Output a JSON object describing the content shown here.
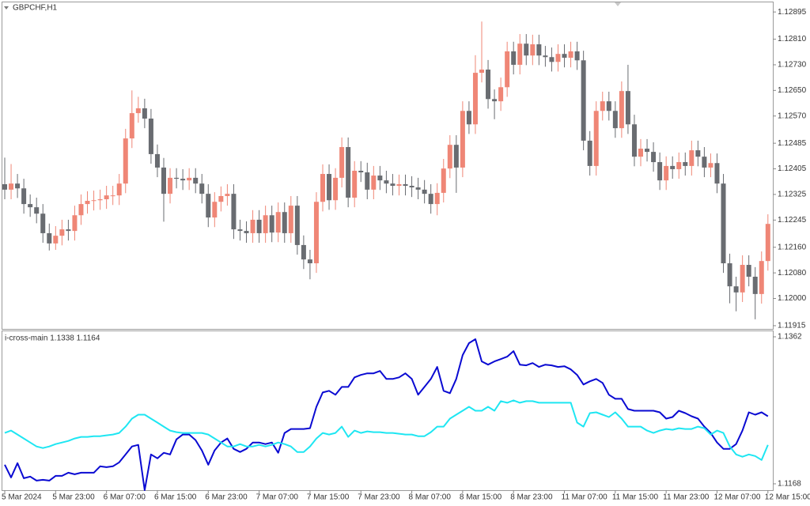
{
  "chart_data": [
    {
      "type": "candlestick",
      "title": "GBPCHF,H1",
      "up_color": "#ef8676",
      "down_color": "#696c71",
      "ylim": [
        1.11905,
        1.12925
      ],
      "yticks": [
        1.12895,
        {
          "value": 1.1281,
          "label": "1.12810"
        },
        {
          "value": 1.1273,
          "label": "1.12730"
        },
        {
          "value": 1.1265,
          "label": "1.12650"
        },
        {
          "value": 1.1257,
          "label": "1.12570"
        },
        1.12485,
        1.12405,
        1.12325,
        1.12245,
        {
          "value": 1.1216,
          "label": "1.12160"
        },
        {
          "value": 1.1208,
          "label": "1.12080"
        },
        {
          "value": 1.12,
          "label": "1.12000"
        },
        1.11915
      ],
      "categories": [
        "5 Mar 2024",
        null,
        null,
        null,
        null,
        null,
        null,
        null,
        "5 Mar 23:00",
        null,
        null,
        null,
        null,
        null,
        null,
        null,
        "6 Mar 07:00",
        null,
        null,
        null,
        null,
        null,
        null,
        null,
        "6 Mar 15:00",
        null,
        null,
        null,
        null,
        null,
        null,
        null,
        "6 Mar 23:00",
        null,
        null,
        null,
        null,
        null,
        null,
        null,
        "7 Mar 07:00",
        null,
        null,
        null,
        null,
        null,
        null,
        null,
        "7 Mar 15:00",
        null,
        null,
        null,
        null,
        null,
        null,
        null,
        "7 Mar 23:00",
        null,
        null,
        null,
        null,
        null,
        null,
        null,
        "8 Mar 07:00",
        null,
        null,
        null,
        null,
        null,
        null,
        null,
        "8 Mar 15:00",
        null,
        null,
        null,
        null,
        null,
        null,
        null,
        "8 Mar 23:00",
        null,
        null,
        null,
        null,
        null,
        null,
        null,
        "11 Mar 07:00",
        null,
        null,
        null,
        null,
        null,
        null,
        null,
        "11 Mar 15:00",
        null,
        null,
        null,
        null,
        null,
        null,
        null,
        "11 Mar 23:00",
        null,
        null,
        null,
        null,
        null,
        null,
        null,
        "12 Mar 07:00",
        null,
        null,
        null,
        null,
        null,
        null,
        null,
        "12 Mar 15:00"
      ],
      "open": [
        1.12357,
        1.1234,
        1.12359,
        1.12344,
        1.12295,
        1.12285,
        1.12265,
        1.12204,
        1.12172,
        1.12196,
        1.12216,
        1.12211,
        1.1226,
        1.12295,
        1.12305,
        1.12307,
        1.1231,
        1.12322,
        1.12322,
        1.12359,
        1.125,
        1.12579,
        1.12594,
        1.12562,
        1.12451,
        1.12409,
        1.12327,
        1.12377,
        1.12374,
        1.12369,
        1.12377,
        1.12359,
        1.12327,
        1.12253,
        1.12302,
        1.1232,
        1.12327,
        1.12216,
        1.12211,
        1.12204,
        1.12246,
        1.12204,
        1.1226,
        1.12206,
        1.1227,
        1.12204,
        1.1229,
        1.12167,
        1.12122,
        1.1211,
        1.12302,
        1.12389,
        1.12307,
        1.12377,
        1.12473,
        1.12315,
        1.12399,
        1.12394,
        1.1234,
        1.12384,
        1.12369,
        1.12359,
        1.12352,
        1.12357,
        1.12352,
        1.12347,
        1.1234,
        1.12327,
        1.12295,
        1.1233,
        1.12406,
        1.1248,
        1.12409,
        1.12586,
        1.12544,
        1.12705,
        1.12715,
        1.12623,
        1.12616,
        1.1266,
        1.12772,
        1.1273,
        1.12796,
        1.12759,
        1.12794,
        1.12759,
        1.12754,
        1.12739,
        1.12764,
        1.12752,
        1.12772,
        1.12744,
        1.12493,
        1.12414,
        1.12586,
        1.12616,
        1.12586,
        1.12532,
        1.12648,
        1.12544,
        1.12443,
        1.12468,
        1.12458,
        1.12426,
        1.12369,
        1.12414,
        1.12404,
        1.12426,
        1.12414,
        1.12463,
        1.12443,
        1.12409,
        1.12423,
        1.12359,
        1.1211,
        1.12038,
        1.12019,
        1.12105,
        1.12068,
        1.12014,
        1.12117
      ],
      "high": [
        1.1244,
        1.1242,
        1.12389,
        1.12374,
        1.12325,
        1.12315,
        1.12295,
        1.12234,
        1.12226,
        1.12246,
        1.12246,
        1.1229,
        1.12325,
        1.12335,
        1.12337,
        1.1234,
        1.12352,
        1.12352,
        1.12389,
        1.1253,
        1.1265,
        1.1263,
        1.12624,
        1.12592,
        1.12481,
        1.12439,
        1.12407,
        1.12407,
        1.12404,
        1.12407,
        1.12407,
        1.12389,
        1.12357,
        1.12332,
        1.1235,
        1.12357,
        1.12357,
        1.12246,
        1.12241,
        1.12276,
        1.12276,
        1.1229,
        1.1229,
        1.123,
        1.123,
        1.1232,
        1.1232,
        1.12197,
        1.12152,
        1.12332,
        1.12419,
        1.12419,
        1.12407,
        1.12503,
        1.12503,
        1.12429,
        1.12429,
        1.12424,
        1.12414,
        1.12414,
        1.12399,
        1.12389,
        1.12387,
        1.12387,
        1.12382,
        1.12377,
        1.1237,
        1.12357,
        1.1236,
        1.12436,
        1.1251,
        1.1251,
        1.12616,
        1.12616,
        1.1276,
        1.12865,
        1.12745,
        1.12653,
        1.1269,
        1.12802,
        1.12802,
        1.12826,
        1.12826,
        1.12824,
        1.12824,
        1.12789,
        1.12784,
        1.12794,
        1.12794,
        1.12802,
        1.12802,
        1.12774,
        1.12523,
        1.12616,
        1.12646,
        1.12646,
        1.12616,
        1.12678,
        1.1273,
        1.12574,
        1.12498,
        1.12498,
        1.12488,
        1.12456,
        1.12444,
        1.12444,
        1.12456,
        1.12456,
        1.12493,
        1.12493,
        1.12473,
        1.12453,
        1.12453,
        1.12389,
        1.1214,
        1.12068,
        1.12135,
        1.12135,
        1.12098,
        1.12147,
        1.12263
      ],
      "low": [
        1.1231,
        1.1231,
        1.12314,
        1.12265,
        1.12255,
        1.12235,
        1.12174,
        1.1215,
        1.12152,
        1.12166,
        1.12181,
        1.12181,
        1.1223,
        1.12265,
        1.12275,
        1.12277,
        1.1228,
        1.12292,
        1.12292,
        1.12329,
        1.1247,
        1.12549,
        1.12532,
        1.12421,
        1.12379,
        1.1224,
        1.12297,
        1.12344,
        1.12339,
        1.12339,
        1.12329,
        1.12297,
        1.12223,
        1.12223,
        1.12272,
        1.1229,
        1.12186,
        1.12181,
        1.12174,
        1.12174,
        1.12174,
        1.12174,
        1.12176,
        1.12176,
        1.12174,
        1.12174,
        1.12137,
        1.12092,
        1.1206,
        1.1208,
        1.12272,
        1.12277,
        1.12277,
        1.12347,
        1.12285,
        1.12285,
        1.12364,
        1.1231,
        1.1231,
        1.12339,
        1.12329,
        1.12322,
        1.12322,
        1.12322,
        1.12317,
        1.1231,
        1.12297,
        1.12265,
        1.1226,
        1.123,
        1.12376,
        1.1233,
        1.12379,
        1.12514,
        1.12514,
        1.12675,
        1.12593,
        1.1256,
        1.12586,
        1.1263,
        1.127,
        1.127,
        1.12729,
        1.12729,
        1.12729,
        1.12724,
        1.12709,
        1.12709,
        1.12722,
        1.12722,
        1.12714,
        1.12463,
        1.12384,
        1.12384,
        1.12556,
        1.12556,
        1.12502,
        1.12502,
        1.12514,
        1.12413,
        1.12413,
        1.12428,
        1.12396,
        1.12339,
        1.12339,
        1.12374,
        1.12374,
        1.12384,
        1.12384,
        1.12413,
        1.12379,
        1.12379,
        1.12329,
        1.1208,
        1.11985,
        1.1196,
        1.11989,
        1.12038,
        1.11935,
        1.11984,
        1.12087
      ],
      "close": [
        1.1234,
        1.12359,
        1.12344,
        1.12295,
        1.12285,
        1.12265,
        1.12204,
        1.12172,
        1.12196,
        1.12216,
        1.12211,
        1.1226,
        1.12295,
        1.12305,
        1.12307,
        1.1231,
        1.12322,
        1.12322,
        1.12359,
        1.125,
        1.12579,
        1.12594,
        1.12562,
        1.12451,
        1.12409,
        1.12327,
        1.12377,
        1.12374,
        1.12369,
        1.12377,
        1.12359,
        1.12327,
        1.12253,
        1.12302,
        1.1232,
        1.12327,
        1.12216,
        1.12211,
        1.12204,
        1.12246,
        1.12204,
        1.1226,
        1.12206,
        1.1227,
        1.12204,
        1.1229,
        1.12167,
        1.12122,
        1.1211,
        1.12302,
        1.12389,
        1.12307,
        1.12377,
        1.12473,
        1.12315,
        1.12399,
        1.12394,
        1.1234,
        1.12384,
        1.12369,
        1.12359,
        1.12352,
        1.12357,
        1.12352,
        1.12347,
        1.1234,
        1.12327,
        1.12295,
        1.1233,
        1.12406,
        1.1248,
        1.12409,
        1.12586,
        1.12544,
        1.12705,
        1.12715,
        1.12623,
        1.12616,
        1.1266,
        1.12772,
        1.1273,
        1.12796,
        1.12759,
        1.12794,
        1.12759,
        1.12754,
        1.12739,
        1.12764,
        1.12752,
        1.12772,
        1.12744,
        1.12493,
        1.12414,
        1.12586,
        1.12616,
        1.12586,
        1.12532,
        1.12648,
        1.12544,
        1.12443,
        1.12468,
        1.12458,
        1.12426,
        1.12369,
        1.12414,
        1.12404,
        1.12426,
        1.12414,
        1.12463,
        1.12443,
        1.12409,
        1.12423,
        1.12359,
        1.1211,
        1.12038,
        1.12019,
        1.12105,
        1.12068,
        1.12014,
        1.12117,
        1.12233
      ]
    },
    {
      "type": "line",
      "title": "i-cross-main 1.1338 1.1164",
      "ylim": [
        1.11596,
        1.13693
      ],
      "yticks": [
        1.1362,
        1.1168
      ],
      "series": [
        {
          "color": "#0a0ad2",
          "values": [
            1.11932,
            1.11764,
            1.11953,
            1.11754,
            1.11775,
            1.11722,
            1.11733,
            1.11722,
            1.11785,
            1.11785,
            1.11827,
            1.11806,
            1.11827,
            1.11827,
            1.11827,
            1.11911,
            1.119,
            1.11911,
            1.11963,
            1.12068,
            1.12173,
            1.12194,
            1.11596,
            1.12068,
            1.12016,
            1.12089,
            1.12068,
            1.12267,
            1.1233,
            1.1233,
            1.12257,
            1.12121,
            1.11932,
            1.12121,
            1.12225,
            1.12278,
            1.12142,
            1.121,
            1.12142,
            1.12225,
            1.12225,
            1.12204,
            1.12225,
            1.12089,
            1.12351,
            1.12404,
            1.12404,
            1.12404,
            1.12414,
            1.12697,
            1.12886,
            1.12907,
            1.12855,
            1.12959,
            1.12959,
            1.13085,
            1.13117,
            1.13138,
            1.13138,
            1.13169,
            1.13064,
            1.13064,
            1.13085,
            1.13138,
            1.13064,
            1.12855,
            1.12959,
            1.13064,
            1.13222,
            1.12907,
            1.12876,
            1.13064,
            1.13379,
            1.13536,
            1.13589,
            1.13295,
            1.13253,
            1.13295,
            1.13326,
            1.13358,
            1.13431,
            1.13253,
            1.13243,
            1.13274,
            1.13222,
            1.13253,
            1.13243,
            1.13222,
            1.13232,
            1.1319,
            1.13117,
            1.12991,
            1.13033,
            1.13064,
            1.13012,
            1.12855,
            1.12802,
            1.12802,
            1.12666,
            1.12645,
            1.12645,
            1.12645,
            1.12645,
            1.12624,
            1.1254,
            1.12561,
            1.12645,
            1.12613,
            1.12571,
            1.1254,
            1.12435,
            1.12351,
            1.12225,
            1.12142,
            1.12142,
            1.12204,
            1.12383,
            1.12624,
            1.12592,
            1.12624,
            1.12571
          ]
        },
        {
          "color": "#1ee6f2",
          "values": [
            1.12351,
            1.12383,
            1.1233,
            1.12278,
            1.12225,
            1.12173,
            1.12152,
            1.12173,
            1.12204,
            1.12225,
            1.12246,
            1.12278,
            1.12299,
            1.12299,
            1.12309,
            1.12309,
            1.1232,
            1.1233,
            1.12351,
            1.12435,
            1.1254,
            1.12592,
            1.12592,
            1.1254,
            1.12488,
            1.12435,
            1.12383,
            1.12362,
            1.12351,
            1.12351,
            1.12351,
            1.12351,
            1.1233,
            1.12278,
            1.12225,
            1.12173,
            1.12173,
            1.12204,
            1.12173,
            1.12173,
            1.12194,
            1.12173,
            1.12194,
            1.12225,
            1.12204,
            1.12173,
            1.121,
            1.121,
            1.12173,
            1.12278,
            1.12351,
            1.1233,
            1.12351,
            1.12435,
            1.12299,
            1.12383,
            1.12351,
            1.12372,
            1.12362,
            1.12362,
            1.12351,
            1.12351,
            1.12341,
            1.1233,
            1.1233,
            1.12309,
            1.12309,
            1.12362,
            1.12435,
            1.12435,
            1.1254,
            1.12592,
            1.12645,
            1.12697,
            1.12645,
            1.12645,
            1.12697,
            1.12645,
            1.12771,
            1.1275,
            1.12781,
            1.1275,
            1.12771,
            1.12771,
            1.1275,
            1.1275,
            1.1275,
            1.1275,
            1.1275,
            1.1275,
            1.12488,
            1.12435,
            1.12613,
            1.12624,
            1.12592,
            1.12561,
            1.12624,
            1.1254,
            1.12435,
            1.12435,
            1.12435,
            1.12383,
            1.12351,
            1.12383,
            1.12404,
            1.12393,
            1.12414,
            1.12404,
            1.12404,
            1.12435,
            1.12414,
            1.1233,
            1.12383,
            1.12351,
            1.12173,
            1.12068,
            1.12037,
            1.12068,
            1.12047,
            1.11995,
            1.12194
          ]
        }
      ]
    }
  ]
}
